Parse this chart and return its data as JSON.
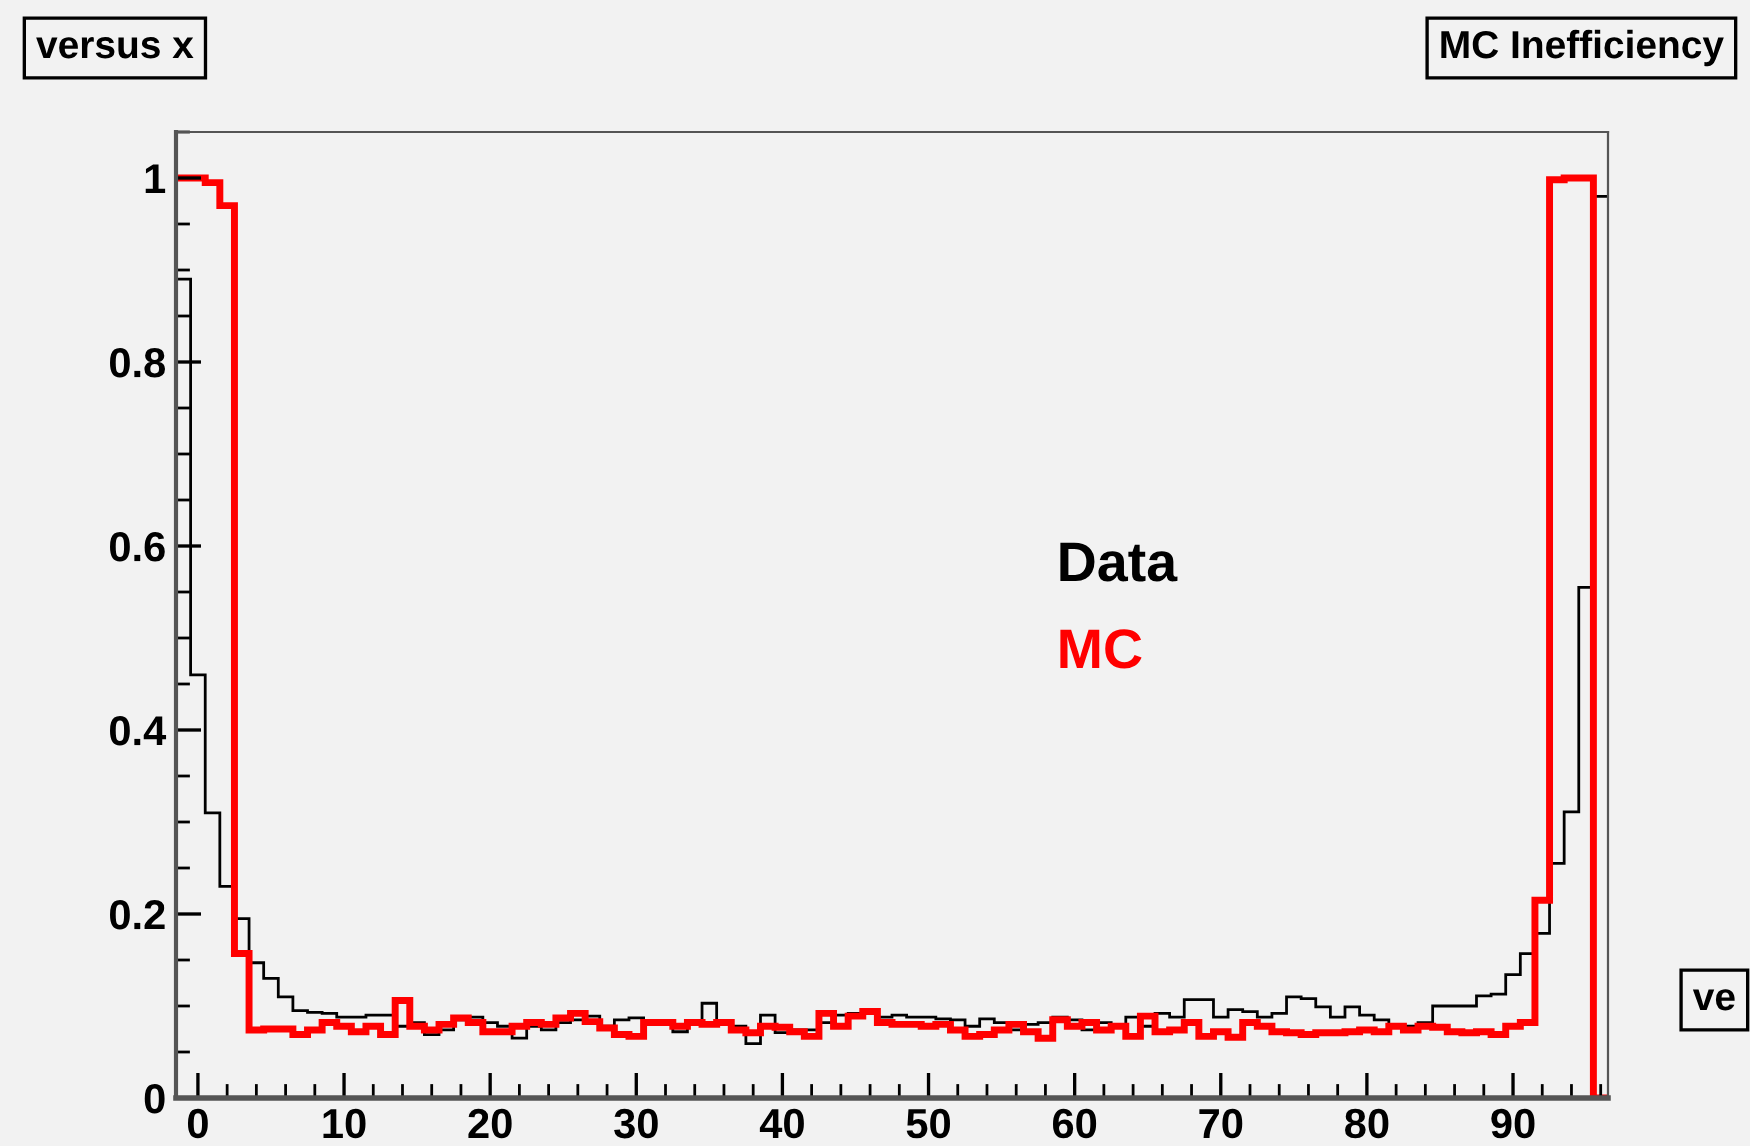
{
  "chart_data": {
    "type": "histogram",
    "title": "versus x",
    "annotations": [
      "MC Inefficiency",
      "ve"
    ],
    "bins": [
      -1.5,
      -0.5,
      0.5,
      1.5,
      2.5,
      3.5,
      4.5,
      5.5,
      6.5,
      7.5,
      8.5,
      9.5,
      10.5,
      11.5,
      12.5,
      13.5,
      14.5,
      15.5,
      16.5,
      17.5,
      18.5,
      19.5,
      20.5,
      21.5,
      22.5,
      23.5,
      24.5,
      25.5,
      26.5,
      27.5,
      28.5,
      29.5,
      30.5,
      31.5,
      32.5,
      33.5,
      34.5,
      35.5,
      36.5,
      37.5,
      38.5,
      39.5,
      40.5,
      41.5,
      42.5,
      43.5,
      44.5,
      45.5,
      46.5,
      47.5,
      48.5,
      49.5,
      50.5,
      51.5,
      52.5,
      53.5,
      54.5,
      55.5,
      56.5,
      57.5,
      58.5,
      59.5,
      60.5,
      61.5,
      62.5,
      63.5,
      64.5,
      65.5,
      66.5,
      67.5,
      68.5,
      69.5,
      70.5,
      71.5,
      72.5,
      73.5,
      74.5,
      75.5,
      76.5,
      77.5,
      78.5,
      79.5,
      80.5,
      81.5,
      82.5,
      83.5,
      84.5,
      85.5,
      86.5,
      87.5,
      88.5,
      89.5,
      90.5,
      91.5,
      92.5,
      93.5,
      94.5,
      95.5,
      96.5
    ],
    "series": [
      {
        "name": "Data",
        "color": "#000000",
        "values": [
          0.89,
          0.46,
          0.31,
          0.23,
          0.195,
          0.147,
          0.13,
          0.11,
          0.095,
          0.093,
          0.092,
          0.088,
          0.088,
          0.09,
          0.09,
          0.078,
          0.082,
          0.069,
          0.074,
          0.085,
          0.088,
          0.082,
          0.078,
          0.065,
          0.078,
          0.074,
          0.082,
          0.085,
          0.089,
          0.078,
          0.085,
          0.087,
          0.082,
          0.082,
          0.072,
          0.08,
          0.103,
          0.082,
          0.078,
          0.059,
          0.09,
          0.071,
          0.074,
          0.074,
          0.082,
          0.09,
          0.092,
          0.093,
          0.088,
          0.09,
          0.088,
          0.088,
          0.086,
          0.085,
          0.078,
          0.086,
          0.082,
          0.074,
          0.08,
          0.082,
          0.088,
          0.085,
          0.074,
          0.082,
          0.078,
          0.088,
          0.078,
          0.092,
          0.088,
          0.107,
          0.107,
          0.088,
          0.096,
          0.094,
          0.088,
          0.092,
          0.11,
          0.108,
          0.099,
          0.088,
          0.099,
          0.09,
          0.085,
          0.08,
          0.078,
          0.082,
          0.1,
          0.1,
          0.1,
          0.111,
          0.113,
          0.134,
          0.157,
          0.179,
          0.255,
          0.311,
          0.555,
          0.98
        ]
      },
      {
        "name": "MC",
        "color": "#ff0000",
        "values": [
          1.0,
          1.0,
          0.995,
          0.97,
          0.157,
          0.074,
          0.075,
          0.075,
          0.069,
          0.074,
          0.082,
          0.078,
          0.072,
          0.078,
          0.069,
          0.106,
          0.078,
          0.074,
          0.08,
          0.087,
          0.082,
          0.072,
          0.072,
          0.078,
          0.082,
          0.08,
          0.087,
          0.092,
          0.083,
          0.076,
          0.069,
          0.067,
          0.082,
          0.082,
          0.078,
          0.082,
          0.08,
          0.082,
          0.074,
          0.071,
          0.078,
          0.077,
          0.072,
          0.067,
          0.092,
          0.078,
          0.089,
          0.094,
          0.082,
          0.08,
          0.08,
          0.078,
          0.08,
          0.074,
          0.067,
          0.069,
          0.074,
          0.08,
          0.072,
          0.065,
          0.085,
          0.078,
          0.082,
          0.074,
          0.078,
          0.067,
          0.089,
          0.072,
          0.074,
          0.082,
          0.067,
          0.072,
          0.066,
          0.082,
          0.078,
          0.072,
          0.071,
          0.069,
          0.071,
          0.071,
          0.072,
          0.074,
          0.072,
          0.078,
          0.074,
          0.078,
          0.077,
          0.072,
          0.071,
          0.072,
          0.069,
          0.078,
          0.082,
          0.215,
          0.998,
          1.0,
          1.0,
          0
        ]
      }
    ],
    "xlim": [
      -1.5,
      96.5
    ],
    "ylim": [
      0,
      1.05
    ],
    "xticks": [
      0,
      10,
      20,
      30,
      40,
      50,
      60,
      70,
      80,
      90
    ],
    "yticks": [
      0,
      0.2,
      0.4,
      0.6,
      0.8,
      1
    ],
    "grid": false
  }
}
